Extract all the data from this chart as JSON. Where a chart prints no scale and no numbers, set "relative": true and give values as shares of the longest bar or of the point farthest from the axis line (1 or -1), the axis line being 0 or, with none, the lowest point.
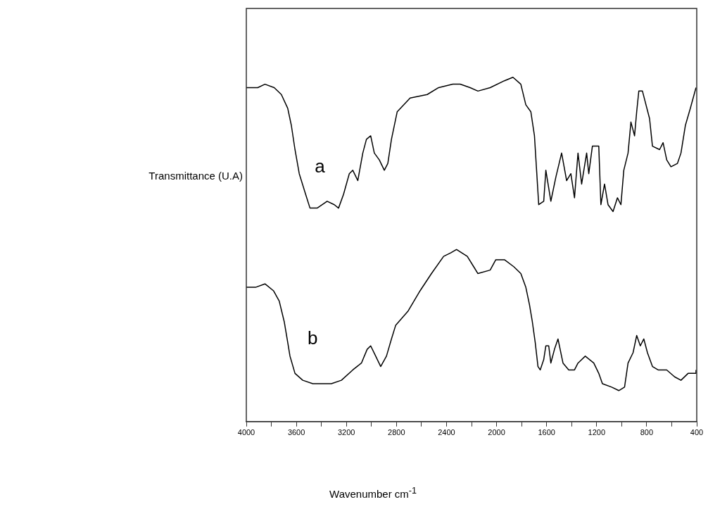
{
  "chart_data": {
    "type": "line",
    "xlabel": "Wavenumber cm$^{-1}$",
    "ylabel": "Transmittance (U.A)",
    "relative": true,
    "legend": false,
    "grid": false,
    "xlim": [
      4000,
      400
    ],
    "xticks": [
      4000,
      {
        "value": 3800,
        "label": null
      },
      3600,
      {
        "value": 3400,
        "label": null
      },
      3200,
      {
        "value": 3000,
        "label": null
      },
      2800,
      {
        "value": 2600,
        "label": null
      },
      2400,
      {
        "value": 2200,
        "label": null
      },
      2000,
      {
        "value": 1800,
        "label": null
      },
      1600,
      {
        "value": 1400,
        "label": null
      },
      1200,
      {
        "value": 1000,
        "label": null
      },
      800,
      {
        "value": 600,
        "label": null
      },
      400
    ],
    "series": [
      {
        "name": "a",
        "color": "#000000",
        "x": [
          4000,
          3909,
          3851,
          3777,
          3720,
          3669,
          3640,
          3611,
          3577,
          3526,
          3491,
          3434,
          3354,
          3297,
          3263,
          3223,
          3177,
          3149,
          3109,
          3069,
          3040,
          3006,
          2977,
          2937,
          2897,
          2869,
          2840,
          2794,
          2691,
          2554,
          2463,
          2349,
          2291,
          2211,
          2149,
          2051,
          1937,
          1869,
          1806,
          1766,
          1726,
          1697,
          1680,
          1663,
          1623,
          1606,
          1566,
          1526,
          1480,
          1440,
          1406,
          1377,
          1349,
          1320,
          1280,
          1263,
          1234,
          1183,
          1166,
          1137,
          1109,
          1069,
          1034,
          1006,
          983,
          949,
          926,
          897,
          880,
          863,
          834,
          777,
          754,
          697,
          669,
          640,
          606,
          554,
          526,
          491,
          451,
          406
        ],
        "values": [
          0.97,
          0.97,
          0.98,
          0.97,
          0.95,
          0.91,
          0.86,
          0.79,
          0.72,
          0.66,
          0.62,
          0.62,
          0.64,
          0.63,
          0.62,
          0.66,
          0.72,
          0.73,
          0.7,
          0.78,
          0.82,
          0.83,
          0.78,
          0.76,
          0.73,
          0.75,
          0.82,
          0.9,
          0.94,
          0.95,
          0.97,
          0.98,
          0.98,
          0.97,
          0.96,
          0.97,
          0.99,
          1,
          0.98,
          0.92,
          0.9,
          0.83,
          0.73,
          0.63,
          0.64,
          0.73,
          0.64,
          0.71,
          0.78,
          0.7,
          0.72,
          0.65,
          0.78,
          0.69,
          0.78,
          0.72,
          0.8,
          0.8,
          0.63,
          0.69,
          0.63,
          0.61,
          0.65,
          0.63,
          0.73,
          0.78,
          0.87,
          0.83,
          0.9,
          0.96,
          0.96,
          0.88,
          0.8,
          0.79,
          0.81,
          0.76,
          0.74,
          0.75,
          0.78,
          0.86,
          0.91,
          0.97
        ]
      },
      {
        "name": "b",
        "color": "#000000",
        "x": [
          4000,
          3926,
          3851,
          3783,
          3737,
          3697,
          3669,
          3651,
          3611,
          3549,
          3469,
          3320,
          3240,
          3149,
          3080,
          3034,
          3006,
          2966,
          2926,
          2880,
          2840,
          2806,
          2709,
          2611,
          2520,
          2423,
          2366,
          2320,
          2234,
          2183,
          2149,
          2051,
          2006,
          1937,
          1863,
          1806,
          1766,
          1737,
          1714,
          1691,
          1669,
          1651,
          1623,
          1606,
          1583,
          1566,
          1537,
          1509,
          1469,
          1423,
          1377,
          1349,
          1291,
          1223,
          1183,
          1154,
          1080,
          1023,
          977,
          949,
          909,
          880,
          851,
          823,
          794,
          754,
          709,
          640,
          577,
          526,
          469,
          411,
          406
        ],
        "values": [
          0.39,
          0.39,
          0.4,
          0.38,
          0.35,
          0.29,
          0.23,
          0.19,
          0.14,
          0.12,
          0.11,
          0.11,
          0.12,
          0.15,
          0.17,
          0.21,
          0.22,
          0.19,
          0.16,
          0.19,
          0.24,
          0.28,
          0.32,
          0.38,
          0.43,
          0.48,
          0.49,
          0.5,
          0.48,
          0.45,
          0.43,
          0.44,
          0.47,
          0.47,
          0.45,
          0.43,
          0.39,
          0.34,
          0.29,
          0.23,
          0.16,
          0.15,
          0.18,
          0.22,
          0.22,
          0.17,
          0.21,
          0.24,
          0.17,
          0.15,
          0.15,
          0.17,
          0.19,
          0.17,
          0.14,
          0.11,
          0.1,
          0.09,
          0.1,
          0.17,
          0.2,
          0.25,
          0.22,
          0.24,
          0.2,
          0.16,
          0.15,
          0.15,
          0.13,
          0.12,
          0.14,
          0.14,
          0.15
        ]
      }
    ]
  }
}
